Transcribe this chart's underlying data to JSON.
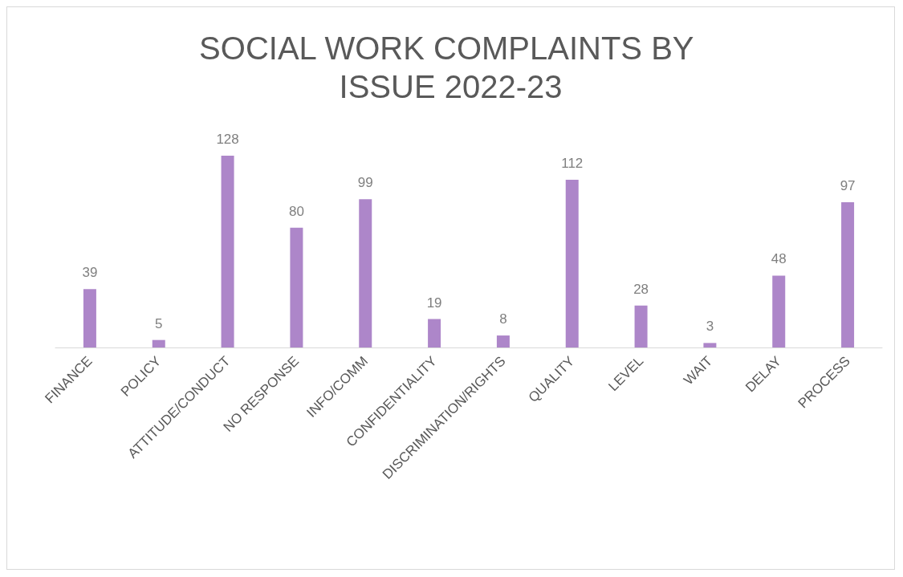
{
  "chart_data": {
    "type": "bar",
    "title": "SOCIAL WORK COMPLAINTS BY ISSUE 2022-23",
    "categories": [
      "FINANCE",
      "POLICY",
      "ATTITUDE/CONDUCT",
      "NO RESPONSE",
      "INFO/COMM",
      "CONFIDENTIALITY",
      "DISCRIMINATION/RIGHTS",
      "QUALITY",
      "LEVEL",
      "WAIT",
      "DELAY",
      "PROCESS"
    ],
    "values": [
      39,
      5,
      128,
      80,
      99,
      19,
      8,
      112,
      28,
      3,
      48,
      97
    ],
    "color": "#ad86c9",
    "data_labels": true
  }
}
